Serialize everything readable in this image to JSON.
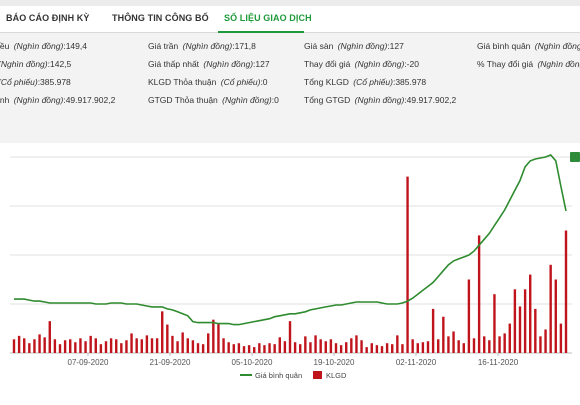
{
  "tabs": [
    {
      "label": "BÁO CÁO ĐỊNH KỲ",
      "active": false
    },
    {
      "label": "THÔNG TIN CÔNG BỐ",
      "active": false
    },
    {
      "label": "SỐ LIỆU GIAO DỊCH",
      "active": true
    }
  ],
  "stats": {
    "col1": [
      {
        "label": "iều",
        "unit": "(Nghìn đồng)",
        "value": ":149,4"
      },
      {
        "label": "",
        "unit": "(Nghìn đồng)",
        "value": ":142,5"
      },
      {
        "label": "",
        "unit": "(Cổ phiếu)",
        "value": ":385.978"
      },
      {
        "label": "ịnh",
        "unit": "(Nghìn đồng)",
        "value": ":49.917.902,2"
      }
    ],
    "col2": [
      {
        "label": "Giá trần",
        "unit": "(Nghìn đồng)",
        "value": ":171,8"
      },
      {
        "label": "Giá thấp nhất",
        "unit": "(Nghìn đồng)",
        "value": ":127"
      },
      {
        "label": "KLGD Thỏa thuận",
        "unit": "(Cổ phiếu)",
        "value": ":0"
      },
      {
        "label": "GTGD Thỏa thuận",
        "unit": "(Nghìn đồng)",
        "value": ":0"
      }
    ],
    "col3": [
      {
        "label": "Giá sàn",
        "unit": "(Nghìn đồng)",
        "value": ":127"
      },
      {
        "label": "Thay đổi giá",
        "unit": "(Nghìn đồng)",
        "value": ":-20"
      },
      {
        "label": "Tổng KLGD",
        "unit": "(Cổ phiếu)",
        "value": ":385.978"
      },
      {
        "label": "Tổng GTGD",
        "unit": "(Nghìn đồng)",
        "value": ":49.917.902,2"
      }
    ],
    "col4": [
      {
        "label": "Giá bình quân",
        "unit": "(Nghìn đồng)",
        "value": ""
      },
      {
        "label": "% Thay đổi giá",
        "unit": "(Nghìn đồng)",
        "value": ""
      }
    ]
  },
  "colors": {
    "accent": "#1f9a3a",
    "line": "#2e8b2e",
    "bar": "#c0141c",
    "stats_bg": "#f3f3f3",
    "grid": "#e2e2e2"
  },
  "chart_data": {
    "type": "bar+line",
    "x_tick_labels": [
      "07-09-2020",
      "21-09-2020",
      "05-10-2020",
      "19-10-2020",
      "02-11-2020",
      "16-11-2020"
    ],
    "legend": [
      {
        "name": "Giá bình quân",
        "kind": "line",
        "color": "#2e8b2e"
      },
      {
        "name": "KLGD",
        "kind": "bar",
        "color": "#c0141c"
      }
    ],
    "legend_position": "bottom-center",
    "grid": true,
    "price_ylim": [
      0,
      200
    ],
    "volume_ylim": [
      0,
      400000
    ],
    "price": [
      55,
      55,
      55,
      54,
      53,
      53,
      52,
      51,
      51,
      51,
      51,
      51,
      51,
      51,
      51,
      51,
      50,
      50,
      50,
      51,
      51,
      51,
      50,
      50,
      50,
      49,
      48,
      47,
      47,
      47,
      45,
      44,
      42,
      40,
      38,
      32,
      31,
      31,
      31,
      31,
      30,
      30,
      30,
      29,
      29,
      30,
      31,
      32,
      33,
      34,
      35,
      37,
      38,
      39,
      40,
      40,
      41,
      42,
      44,
      45,
      46,
      47,
      48,
      49,
      49,
      50,
      51,
      52,
      52,
      52,
      52,
      52,
      51,
      50,
      50,
      50,
      51,
      53,
      56,
      60,
      64,
      68,
      72,
      78,
      84,
      90,
      94,
      96,
      98,
      100,
      104,
      110,
      116,
      122,
      130,
      138,
      146,
      156,
      166,
      176,
      190,
      196,
      198,
      199,
      200,
      202,
      196,
      170,
      145
    ],
    "volume": [
      28000,
      35000,
      30000,
      20000,
      28000,
      38000,
      32000,
      65000,
      28000,
      18000,
      26000,
      28000,
      22000,
      30000,
      24000,
      35000,
      30000,
      18000,
      24000,
      30000,
      28000,
      20000,
      26000,
      40000,
      30000,
      28000,
      36000,
      30000,
      30000,
      85000,
      58000,
      35000,
      24000,
      42000,
      30000,
      26000,
      20000,
      18000,
      40000,
      68000,
      60000,
      30000,
      22000,
      18000,
      20000,
      14000,
      16000,
      12000,
      20000,
      16000,
      20000,
      18000,
      32000,
      24000,
      65000,
      22000,
      18000,
      34000,
      22000,
      36000,
      28000,
      24000,
      28000,
      20000,
      16000,
      22000,
      30000,
      36000,
      26000,
      12000,
      20000,
      16000,
      14000,
      20000,
      18000,
      36000,
      18000,
      360000,
      28000,
      20000,
      22000,
      24000,
      90000,
      28000,
      74000,
      34000,
      44000,
      26000,
      20000,
      150000,
      30000,
      240000,
      34000,
      26000,
      120000,
      34000,
      40000,
      60000,
      130000,
      95000,
      130000,
      160000,
      90000,
      34000,
      48000,
      180000,
      150000,
      60000,
      250000
    ]
  }
}
